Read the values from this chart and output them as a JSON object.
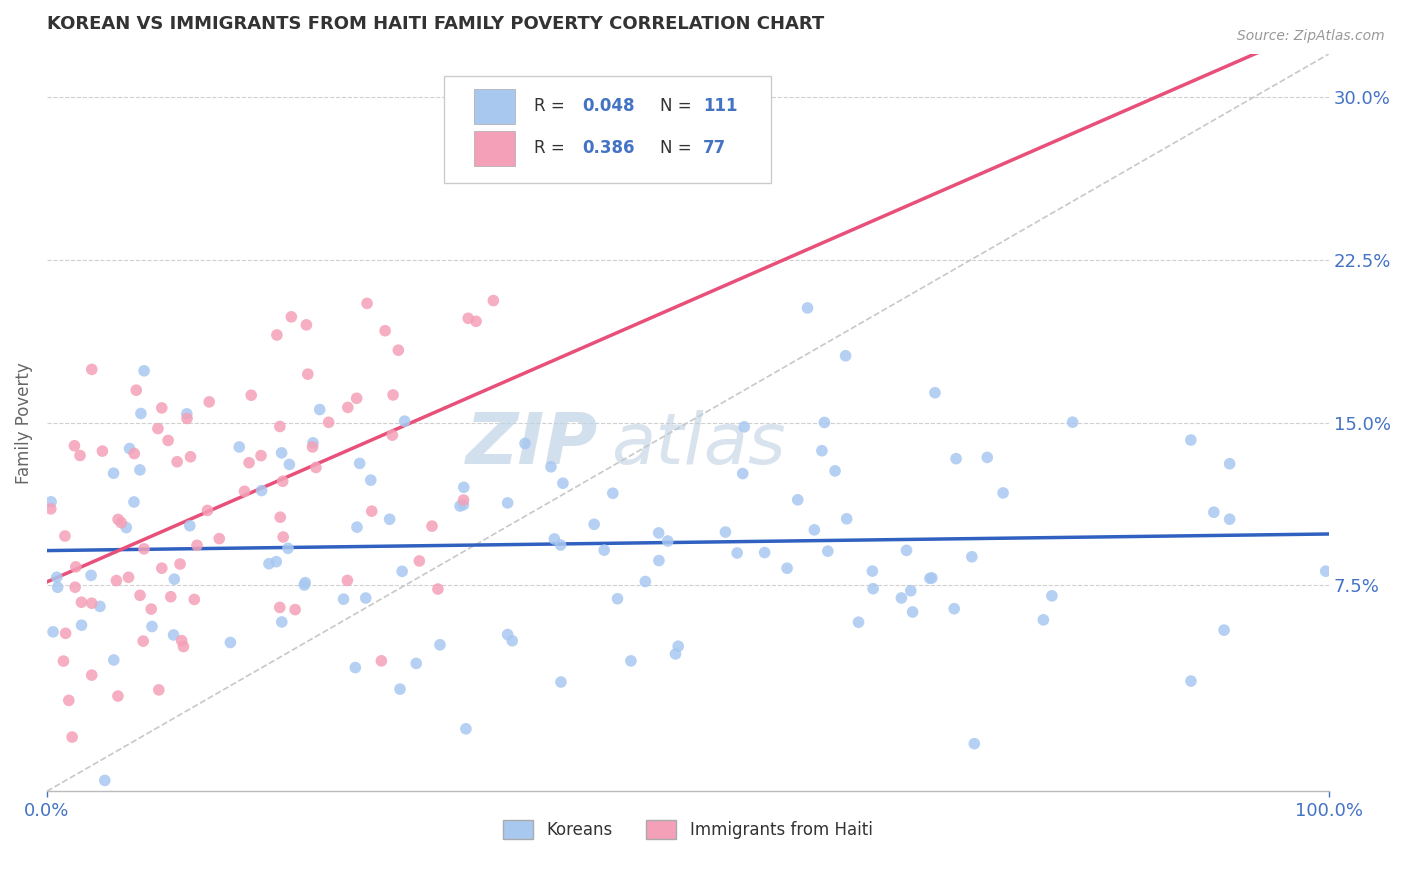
{
  "title": "KOREAN VS IMMIGRANTS FROM HAITI FAMILY POVERTY CORRELATION CHART",
  "source": "Source: ZipAtlas.com",
  "ylabel": "Family Poverty",
  "x_min": 0.0,
  "x_max": 100.0,
  "y_min": -2.0,
  "y_max": 32.0,
  "y_ticks": [
    7.5,
    15.0,
    22.5,
    30.0
  ],
  "series": [
    {
      "name": "Koreans",
      "R": 0.048,
      "N": 111,
      "marker_color": "#a8c8f0",
      "trend_color": "#3060c0",
      "trend_style": "-"
    },
    {
      "name": "Immigrants from Haiti",
      "R": 0.386,
      "N": 77,
      "marker_color": "#f4a0b8",
      "trend_color": "#e8507a",
      "trend_style": "-"
    }
  ],
  "diag_line_color": "#c8c8c8",
  "watermark_zip_color": "#c8d8e8",
  "watermark_atlas_color": "#b0c8e0",
  "background_color": "#ffffff",
  "grid_color": "#d0d0d0",
  "title_color": "#333333",
  "axis_label_color": "#4472c4",
  "legend_R_color": "#4472c4"
}
